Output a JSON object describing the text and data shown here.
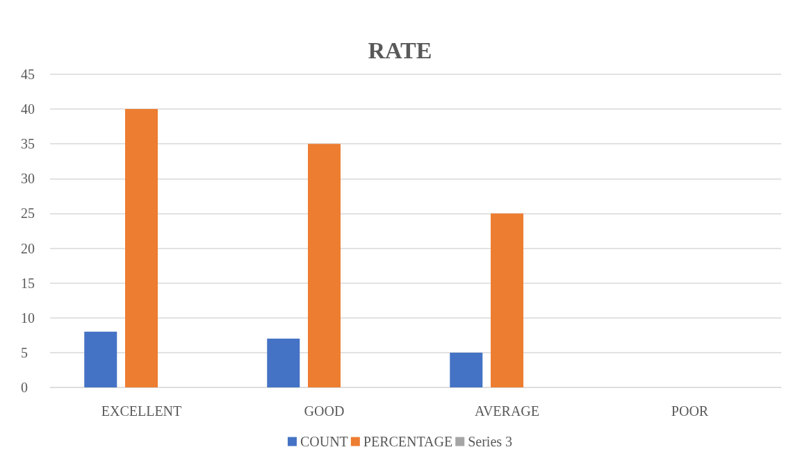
{
  "chart_data": {
    "type": "bar",
    "title": "RATE",
    "categories": [
      "EXCELLENT",
      "GOOD",
      "AVERAGE",
      "POOR"
    ],
    "series": [
      {
        "name": "COUNT",
        "color": "#4472c4",
        "values": [
          8,
          7,
          5,
          0
        ]
      },
      {
        "name": "PERCENTAGE",
        "color": "#ed7d31",
        "values": [
          40,
          35,
          25,
          0
        ]
      },
      {
        "name": "Series 3",
        "color": "#a5a5a5",
        "values": [
          null,
          null,
          null,
          null
        ]
      }
    ],
    "ylim": [
      0,
      45
    ],
    "yticks": [
      0,
      5,
      10,
      15,
      20,
      25,
      30,
      35,
      40,
      45
    ],
    "grid": "y",
    "legend": "bottom"
  }
}
